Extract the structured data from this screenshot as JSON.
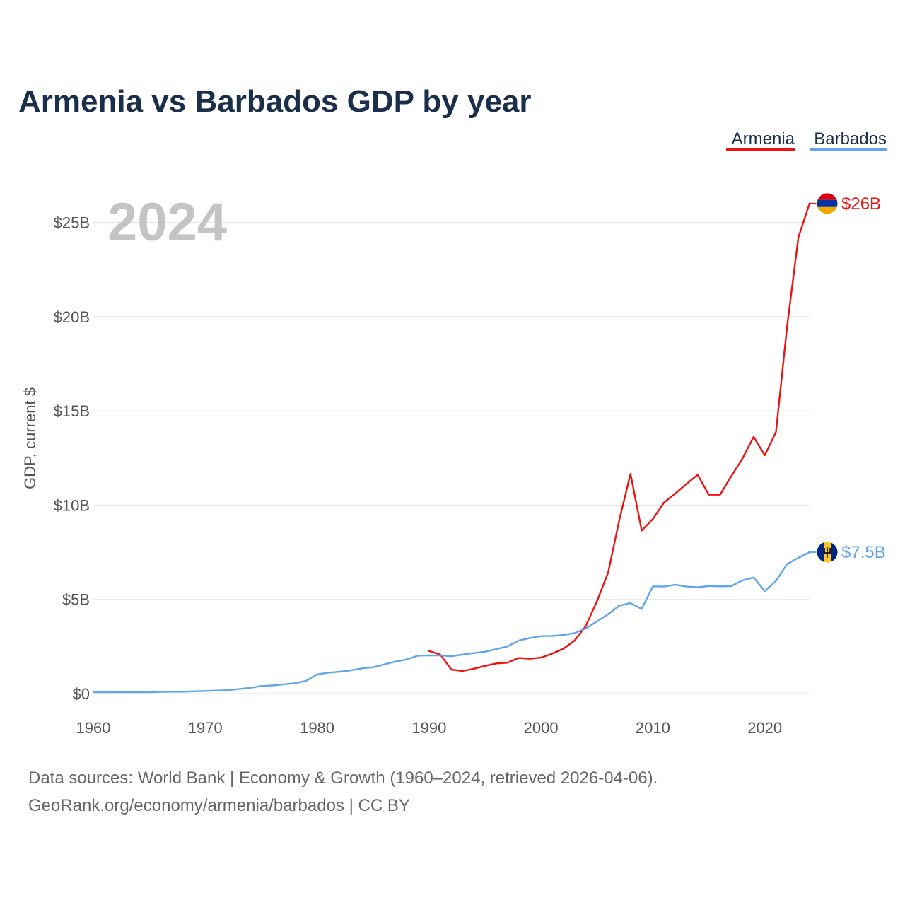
{
  "colors": {
    "armenia": "#ee1111",
    "barbados": "#5fa5ea",
    "title": "#1b2f4d"
  },
  "chart_data": {
    "type": "line",
    "title": "Armenia vs Barbados GDP by year",
    "ylabel": "GDP, current $",
    "xlabel": "",
    "current_year": "2024",
    "xlim": [
      1960,
      2024
    ],
    "ylim": [
      0,
      26
    ],
    "x_ticks": [
      1960,
      1970,
      1980,
      1990,
      2000,
      2010,
      2020
    ],
    "x_tick_labels": [
      "1960",
      "1970",
      "1980",
      "1990",
      "2000",
      "2010",
      "2020"
    ],
    "y_ticks": [
      0,
      5,
      10,
      15,
      20,
      25
    ],
    "y_tick_labels": [
      "$0",
      "$5B",
      "$10B",
      "$15B",
      "$20B",
      "$25B"
    ],
    "legend": [
      "Armenia",
      "Barbados"
    ],
    "series": [
      {
        "name": "Armenia",
        "unit": "billion USD",
        "end_label": "$26B",
        "flag_icon": "armenia-flag-icon",
        "x": [
          1990,
          1991,
          1992,
          1993,
          1994,
          1995,
          1996,
          1997,
          1998,
          1999,
          2000,
          2001,
          2002,
          2003,
          2004,
          2005,
          2006,
          2007,
          2008,
          2009,
          2010,
          2011,
          2012,
          2013,
          2014,
          2015,
          2016,
          2017,
          2018,
          2019,
          2020,
          2021,
          2022,
          2023,
          2024
        ],
        "values": [
          2.26,
          2.07,
          1.27,
          1.2,
          1.32,
          1.47,
          1.6,
          1.64,
          1.89,
          1.85,
          1.91,
          2.12,
          2.38,
          2.81,
          3.58,
          4.9,
          6.41,
          9.21,
          11.66,
          8.65,
          9.26,
          10.14,
          10.62,
          11.12,
          11.61,
          10.55,
          10.55,
          11.53,
          12.46,
          13.62,
          12.64,
          13.88,
          19.5,
          24.21,
          26.0
        ]
      },
      {
        "name": "Barbados",
        "unit": "billion USD",
        "end_label": "$7.5B",
        "flag_icon": "barbados-flag-icon",
        "x": [
          1960,
          1961,
          1962,
          1963,
          1964,
          1965,
          1966,
          1967,
          1968,
          1969,
          1970,
          1971,
          1972,
          1973,
          1974,
          1975,
          1976,
          1977,
          1978,
          1979,
          1980,
          1981,
          1982,
          1983,
          1984,
          1985,
          1986,
          1987,
          1988,
          1989,
          1990,
          1991,
          1992,
          1993,
          1994,
          1995,
          1996,
          1997,
          1998,
          1999,
          2000,
          2001,
          2002,
          2003,
          2004,
          2005,
          2006,
          2007,
          2008,
          2009,
          2010,
          2011,
          2012,
          2013,
          2014,
          2015,
          2016,
          2017,
          2018,
          2019,
          2020,
          2021,
          2022,
          2023,
          2024
        ],
        "values": [
          0.07,
          0.07,
          0.07,
          0.08,
          0.08,
          0.08,
          0.09,
          0.1,
          0.1,
          0.12,
          0.14,
          0.16,
          0.18,
          0.24,
          0.3,
          0.4,
          0.43,
          0.49,
          0.55,
          0.67,
          1.02,
          1.11,
          1.16,
          1.23,
          1.34,
          1.4,
          1.55,
          1.7,
          1.81,
          2.01,
          2.03,
          2.02,
          1.98,
          2.07,
          2.15,
          2.22,
          2.36,
          2.5,
          2.81,
          2.95,
          3.05,
          3.06,
          3.11,
          3.21,
          3.45,
          3.83,
          4.21,
          4.67,
          4.8,
          4.49,
          5.69,
          5.68,
          5.78,
          5.68,
          5.64,
          5.71,
          5.69,
          5.7,
          6.01,
          6.16,
          5.44,
          5.98,
          6.88,
          7.2,
          7.5
        ]
      }
    ]
  },
  "source": {
    "line1": "Data sources: World Bank | Economy & Growth (1960–2024, retrieved 2026-04-06).",
    "line2": "GeoRank.org/economy/armenia/barbados | CC BY"
  }
}
